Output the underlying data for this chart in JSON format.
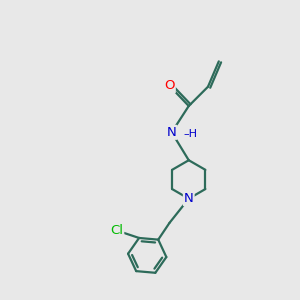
{
  "background_color": "#e8e8e8",
  "bond_color": "#2d6b5a",
  "atom_colors": {
    "O": "#ff0000",
    "N": "#0000cc",
    "Cl": "#00bb00",
    "H": "#0000cc"
  },
  "font_size": 9.5,
  "bond_width": 1.6,
  "figsize": [
    3.0,
    3.0
  ],
  "dpi": 100
}
